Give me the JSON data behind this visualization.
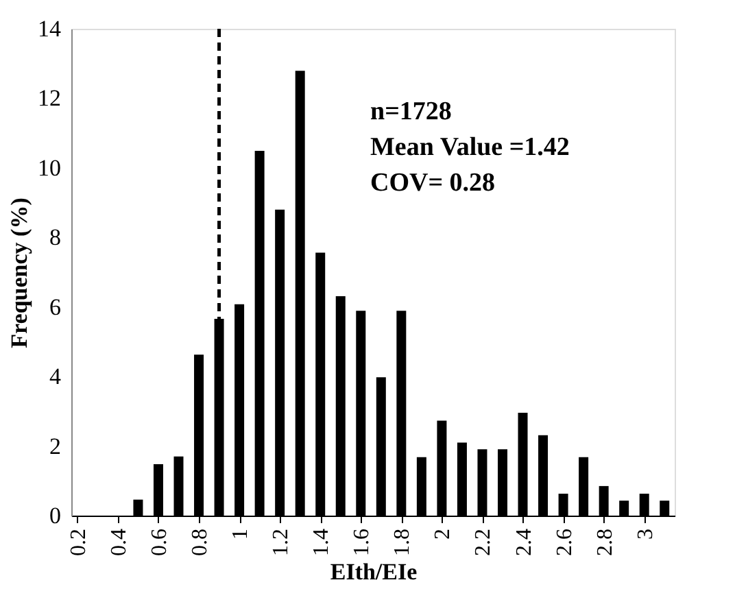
{
  "chart_data": {
    "type": "bar",
    "xlabel": "EIth/EIe",
    "ylabel": "Frequency (%)",
    "x": [
      0.2,
      0.3,
      0.4,
      0.5,
      0.6,
      0.7,
      0.8,
      0.9,
      1.0,
      1.1,
      1.2,
      1.3,
      1.4,
      1.5,
      1.6,
      1.7,
      1.8,
      1.9,
      2.0,
      2.1,
      2.2,
      2.3,
      2.4,
      2.5,
      2.6,
      2.7,
      2.8,
      2.9,
      3.0,
      3.1
    ],
    "values": [
      0,
      0,
      0,
      0.46,
      1.48,
      1.7,
      4.63,
      5.66,
      6.08,
      10.49,
      8.8,
      12.79,
      7.56,
      6.31,
      5.89,
      3.98,
      5.89,
      1.68,
      2.73,
      2.1,
      1.91,
      1.91,
      2.96,
      2.31,
      0.63,
      1.68,
      0.85,
      0.43,
      0.63,
      0.43
    ],
    "color": "#000000",
    "xlim": [
      0.17,
      3.15
    ],
    "xticks": [
      0.2,
      0.4,
      0.6,
      0.8,
      1,
      1.2,
      1.4,
      1.6,
      1.8,
      2,
      2.2,
      2.4,
      2.6,
      2.8,
      3
    ],
    "ylim": [
      0,
      14
    ],
    "yticks": [
      0,
      2,
      4,
      6,
      8,
      10,
      12,
      14
    ],
    "ref_lines": [
      {
        "axis": "x",
        "value": 0.9,
        "color": "#000000",
        "line_style": "dashed"
      }
    ],
    "annotations": [
      "n=1728",
      "Mean Value =1.42",
      "COV= 0.28"
    ],
    "grid": false
  }
}
